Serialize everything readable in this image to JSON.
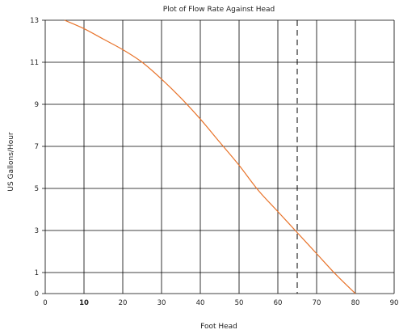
{
  "chart_data": {
    "type": "line",
    "title": "Plot of Flow Rate Against Head",
    "xlabel": "Foot Head",
    "ylabel": "US Gallons/Hour",
    "xlim": [
      0,
      90
    ],
    "ylim": [
      0,
      13
    ],
    "grid": true,
    "xticks": [
      "0",
      "10",
      "20",
      "30",
      "40",
      "50",
      "60",
      "70",
      "80",
      "90"
    ],
    "yticks": [
      "0",
      "1",
      "3",
      "5",
      "7",
      "9",
      "11",
      "13"
    ],
    "series": [
      {
        "color": "#e8732a",
        "x": [
          5,
          10,
          15,
          20,
          25,
          30,
          35,
          40,
          45,
          50,
          55,
          60,
          65,
          70,
          75,
          80
        ],
        "y": [
          13.0,
          12.6,
          12.1,
          11.6,
          11.0,
          10.2,
          9.3,
          8.3,
          7.2,
          6.1,
          4.9,
          3.9,
          2.9,
          1.9,
          0.9,
          0.0
        ]
      }
    ],
    "reference_line": {
      "x": 65,
      "style": "dashed",
      "color": "#000000"
    },
    "colors": {
      "grid": "#000000",
      "curve": "#e8732a"
    }
  }
}
